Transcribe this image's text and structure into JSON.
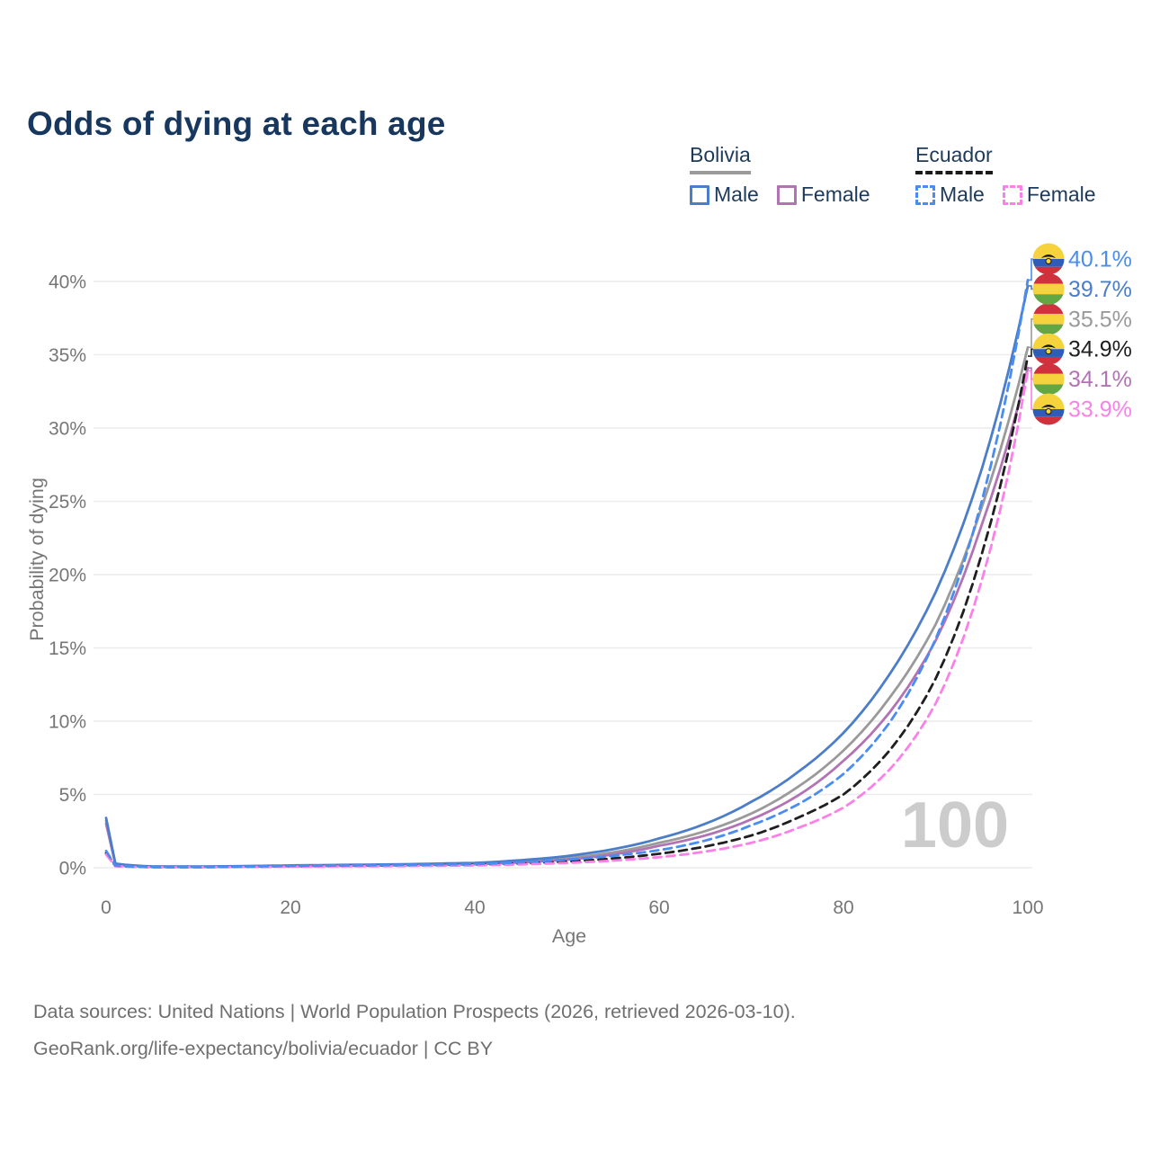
{
  "title": "Odds of dying at each age",
  "legend": {
    "groups": [
      {
        "country": "Bolivia",
        "line_color": "#9a9a9a",
        "dashed": false,
        "items": [
          {
            "label": "Male",
            "color": "#4b7dc8",
            "dashed": false
          },
          {
            "label": "Female",
            "color": "#b273b4",
            "dashed": false
          }
        ]
      },
      {
        "country": "Ecuador",
        "line_color": "#1a1a1a",
        "dashed": true,
        "items": [
          {
            "label": "Male",
            "color": "#4a8cf0",
            "dashed": true
          },
          {
            "label": "Female",
            "color": "#fb80e8",
            "dashed": true
          }
        ]
      }
    ]
  },
  "chart_data": {
    "type": "line",
    "title": "Odds of dying at each age",
    "xlabel": "Age",
    "ylabel": "Probability of dying",
    "xlim": [
      0,
      100
    ],
    "ylim": [
      0,
      42
    ],
    "grid": "horizontal",
    "legend_position": "top-right",
    "watermark": "100",
    "xticks": [
      0,
      20,
      40,
      60,
      80,
      100
    ],
    "yticks": [
      {
        "value": 0,
        "label": "0%"
      },
      {
        "value": 5,
        "label": "5%"
      },
      {
        "value": 10,
        "label": "10%"
      },
      {
        "value": 15,
        "label": "15%"
      },
      {
        "value": 20,
        "label": "20%"
      },
      {
        "value": 25,
        "label": "25%"
      },
      {
        "value": 30,
        "label": "30%"
      },
      {
        "value": 35,
        "label": "35%"
      },
      {
        "value": 40,
        "label": "40%"
      }
    ],
    "series": [
      {
        "id": "bolivia-total",
        "name": "Bolivia Total",
        "country": "Bolivia",
        "sex": "Total",
        "color": "#9a9a9a",
        "dashed": false,
        "flag": "bolivia",
        "end_label": "35.5%",
        "end_value": 35.5,
        "label_row": 2,
        "points": [
          [
            0,
            3.2
          ],
          [
            1,
            0.26
          ],
          [
            5,
            0.08
          ],
          [
            10,
            0.07
          ],
          [
            20,
            0.13
          ],
          [
            30,
            0.18
          ],
          [
            40,
            0.28
          ],
          [
            50,
            0.65
          ],
          [
            60,
            1.7
          ],
          [
            65,
            2.5
          ],
          [
            70,
            3.7
          ],
          [
            75,
            5.5
          ],
          [
            80,
            8.0
          ],
          [
            85,
            11.6
          ],
          [
            90,
            16.6
          ],
          [
            95,
            24.6
          ],
          [
            100,
            35.5
          ]
        ]
      },
      {
        "id": "bolivia-female",
        "name": "Bolivia Female",
        "country": "Bolivia",
        "sex": "Female",
        "color": "#b273b4",
        "dashed": false,
        "flag": "bolivia",
        "end_label": "34.1%",
        "end_value": 34.1,
        "label_row": 4,
        "points": [
          [
            0,
            3.0
          ],
          [
            1,
            0.24
          ],
          [
            5,
            0.07
          ],
          [
            10,
            0.06
          ],
          [
            20,
            0.11
          ],
          [
            30,
            0.15
          ],
          [
            40,
            0.24
          ],
          [
            50,
            0.55
          ],
          [
            60,
            1.5
          ],
          [
            65,
            2.2
          ],
          [
            70,
            3.3
          ],
          [
            75,
            4.9
          ],
          [
            80,
            7.3
          ],
          [
            85,
            10.6
          ],
          [
            90,
            15.5
          ],
          [
            95,
            23.4
          ],
          [
            100,
            34.1
          ]
        ]
      },
      {
        "id": "bolivia-male",
        "name": "Bolivia Male",
        "country": "Bolivia",
        "sex": "Male",
        "color": "#4b7dc8",
        "dashed": false,
        "flag": "bolivia",
        "end_label": "39.7%",
        "end_value": 39.7,
        "label_row": 1,
        "points": [
          [
            0,
            3.4
          ],
          [
            1,
            0.28
          ],
          [
            5,
            0.09
          ],
          [
            10,
            0.08
          ],
          [
            20,
            0.16
          ],
          [
            30,
            0.22
          ],
          [
            40,
            0.33
          ],
          [
            50,
            0.8
          ],
          [
            60,
            2.0
          ],
          [
            65,
            3.0
          ],
          [
            70,
            4.5
          ],
          [
            75,
            6.5
          ],
          [
            80,
            9.2
          ],
          [
            85,
            13.2
          ],
          [
            90,
            18.8
          ],
          [
            95,
            27.2
          ],
          [
            100,
            39.7
          ]
        ]
      },
      {
        "id": "ecuador-total",
        "name": "Ecuador Total",
        "country": "Ecuador",
        "sex": "Total",
        "color": "#1f1f1f",
        "dashed": true,
        "flag": "ecuador",
        "end_label": "34.9%",
        "end_value": 34.9,
        "label_row": 3,
        "points": [
          [
            0,
            1.0
          ],
          [
            1,
            0.12
          ],
          [
            5,
            0.04
          ],
          [
            10,
            0.04
          ],
          [
            20,
            0.1
          ],
          [
            30,
            0.14
          ],
          [
            40,
            0.2
          ],
          [
            50,
            0.42
          ],
          [
            60,
            0.95
          ],
          [
            65,
            1.45
          ],
          [
            70,
            2.2
          ],
          [
            75,
            3.4
          ],
          [
            80,
            5.0
          ],
          [
            85,
            8.0
          ],
          [
            90,
            12.9
          ],
          [
            95,
            21.4
          ],
          [
            100,
            34.9
          ]
        ]
      },
      {
        "id": "ecuador-female",
        "name": "Ecuador Female",
        "country": "Ecuador",
        "sex": "Female",
        "color": "#fb80e8",
        "dashed": true,
        "flag": "ecuador",
        "end_label": "33.9%",
        "end_value": 33.9,
        "label_row": 5,
        "points": [
          [
            0,
            0.9
          ],
          [
            1,
            0.11
          ],
          [
            5,
            0.035
          ],
          [
            10,
            0.035
          ],
          [
            20,
            0.08
          ],
          [
            30,
            0.11
          ],
          [
            40,
            0.16
          ],
          [
            50,
            0.33
          ],
          [
            60,
            0.72
          ],
          [
            65,
            1.1
          ],
          [
            70,
            1.7
          ],
          [
            75,
            2.7
          ],
          [
            80,
            4.1
          ],
          [
            85,
            6.7
          ],
          [
            90,
            11.2
          ],
          [
            95,
            19.6
          ],
          [
            100,
            33.9
          ]
        ]
      },
      {
        "id": "ecuador-male",
        "name": "Ecuador Male",
        "country": "Ecuador",
        "sex": "Male",
        "color": "#4a8cf0",
        "dashed": true,
        "flag": "ecuador",
        "end_label": "40.1%",
        "end_value": 40.1,
        "label_row": 0,
        "points": [
          [
            0,
            1.15
          ],
          [
            1,
            0.14
          ],
          [
            5,
            0.05
          ],
          [
            10,
            0.05
          ],
          [
            20,
            0.13
          ],
          [
            30,
            0.18
          ],
          [
            40,
            0.25
          ],
          [
            50,
            0.55
          ],
          [
            60,
            1.2
          ],
          [
            65,
            1.85
          ],
          [
            70,
            2.9
          ],
          [
            75,
            4.3
          ],
          [
            80,
            6.4
          ],
          [
            85,
            9.9
          ],
          [
            90,
            15.6
          ],
          [
            95,
            25.0
          ],
          [
            100,
            40.1
          ]
        ]
      }
    ]
  },
  "footer": {
    "line1": "Data sources: United Nations | World Population Prospects (2026, retrieved 2026-03-10).",
    "line2": "GeoRank.org/life-expectancy/bolivia/ecuador | CC BY"
  }
}
